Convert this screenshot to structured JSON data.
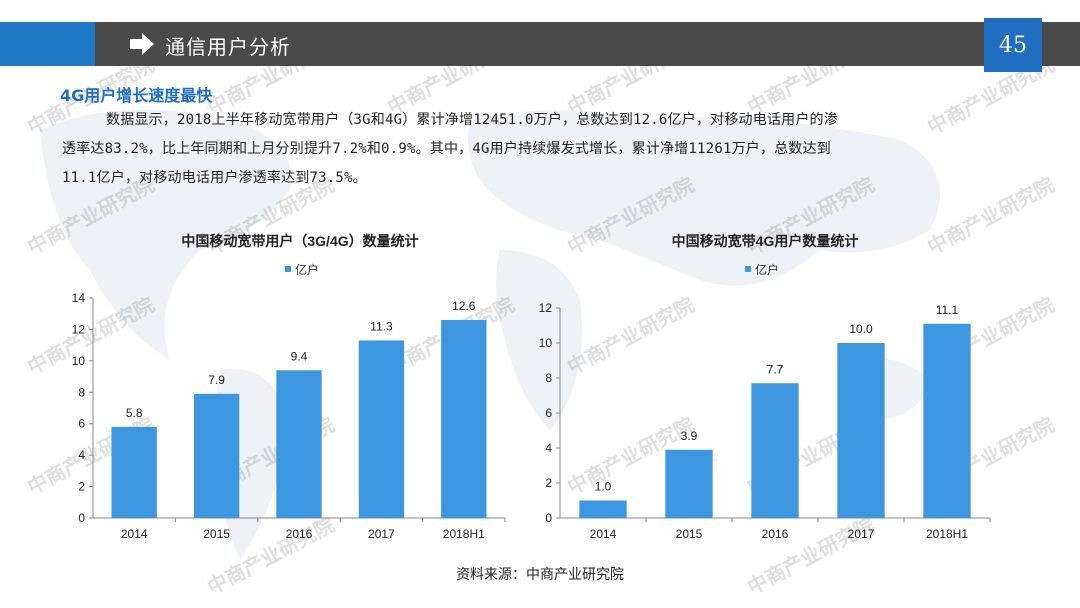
{
  "header": {
    "section_title": "通信用户分析",
    "page_number": "45",
    "accent_color": "#1f79c4",
    "dark_color": "#4a4a4a"
  },
  "subtitle": "4G用户增长速度最快",
  "paragraph": {
    "line1": "数据显示，2018上半年移动宽带用户（3G和4G）累计净增12451.0万户，总数达到12.6亿户，对移动电话用户的渗",
    "line2": "透率达83.2%，比上年同期和上月分别提升7.2%和0.9%。其中，4G用户持续爆发式增长，累计净增11261万户，总数达到",
    "line3": "11.1亿户，对移动电话用户渗透率达到73.5%。"
  },
  "watermark": "中商产业研究院",
  "source": "资料来源：中商产业研究院",
  "chart_data": [
    {
      "type": "bar",
      "title": "中国移动宽带用户（3G/4G）数量统计",
      "legend": "亿户",
      "categories": [
        "2014",
        "2015",
        "2016",
        "2017",
        "2018H1"
      ],
      "values": [
        5.8,
        7.9,
        9.4,
        11.3,
        12.6
      ],
      "value_labels": [
        "5.8",
        "7.9",
        "9.4",
        "11.3",
        "12.6"
      ],
      "yticks": [
        "0",
        "2",
        "4",
        "6",
        "8",
        "10",
        "12",
        "14"
      ],
      "ylim": [
        0,
        14
      ],
      "color": "#3d96e0"
    },
    {
      "type": "bar",
      "title": "中国移动宽带4G用户数量统计",
      "legend": "亿户",
      "categories": [
        "2014",
        "2015",
        "2016",
        "2017",
        "2018H1"
      ],
      "values": [
        1.0,
        3.9,
        7.7,
        10.0,
        11.1
      ],
      "value_labels": [
        "1.0",
        "3.9",
        "7.7",
        "10.0",
        "11.1"
      ],
      "yticks": [
        "0",
        "2",
        "4",
        "6",
        "8",
        "10",
        "12"
      ],
      "ylim": [
        0,
        12
      ],
      "color": "#3d96e0"
    }
  ]
}
